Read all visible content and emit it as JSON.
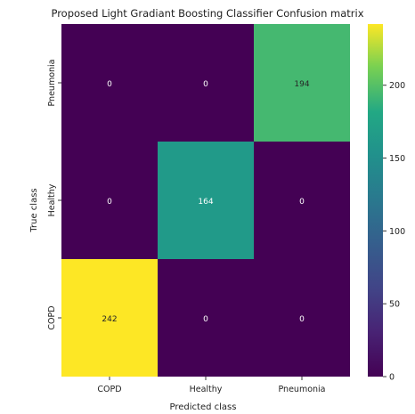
{
  "chart_data": {
    "type": "heatmap",
    "title": "Proposed Light Gradiant Boosting Classifier Confusion matrix",
    "xlabel": "Predicted class",
    "ylabel": "True class",
    "x_categories": [
      "COPD",
      "Healthy",
      "Pneumonia"
    ],
    "y_categories": [
      "Pneumonia",
      "Healthy",
      "COPD"
    ],
    "values": [
      [
        0,
        0,
        194
      ],
      [
        0,
        164,
        0
      ],
      [
        242,
        0,
        0
      ]
    ],
    "colorscale": "viridis",
    "colorbar": {
      "range": [
        0,
        242
      ],
      "ticks": [
        0,
        50,
        100,
        150,
        200
      ]
    }
  }
}
